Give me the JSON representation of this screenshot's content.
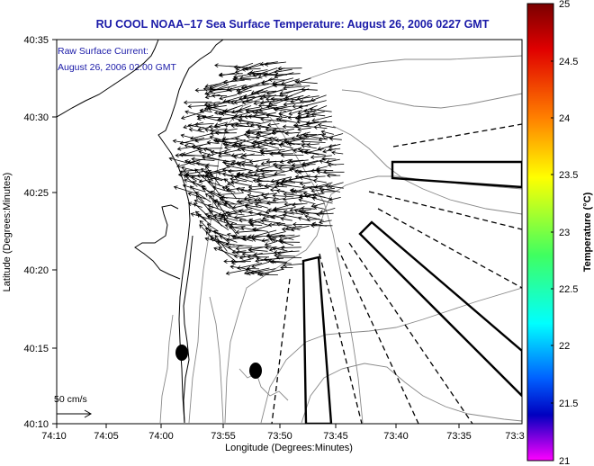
{
  "title": "RU COOL  NOAA–17  Sea Surface Temperature:  August 26, 2006 0227 GMT",
  "annotation": {
    "line1": "Raw Surface Current:",
    "line2": "August 26, 2006 02:00 GMT"
  },
  "axes": {
    "xlabel": "Longitude (Degrees:Minutes)",
    "ylabel": "Latitude (Degrees:Minutes)",
    "x_ticks": [
      "74:10",
      "74:05",
      "74:00",
      "73:55",
      "73:50",
      "73:45",
      "73:40",
      "73:35",
      "73:3"
    ],
    "y_ticks": [
      "40:35",
      "40:30",
      "40:25",
      "40:20",
      "40:15",
      "40:10"
    ]
  },
  "colorbar": {
    "label": "Temperature (°C)",
    "ticks": [
      "25",
      "24.5",
      "24",
      "23.5",
      "23",
      "22.5",
      "22",
      "21.5",
      "21"
    ]
  },
  "scale": {
    "label": "50 cm/s"
  },
  "colors": {
    "title": "#1a1aa8",
    "vectors": "#000000",
    "bathymetry": "#888888"
  },
  "icons": {
    "scale_arrow": "right-arrow"
  }
}
